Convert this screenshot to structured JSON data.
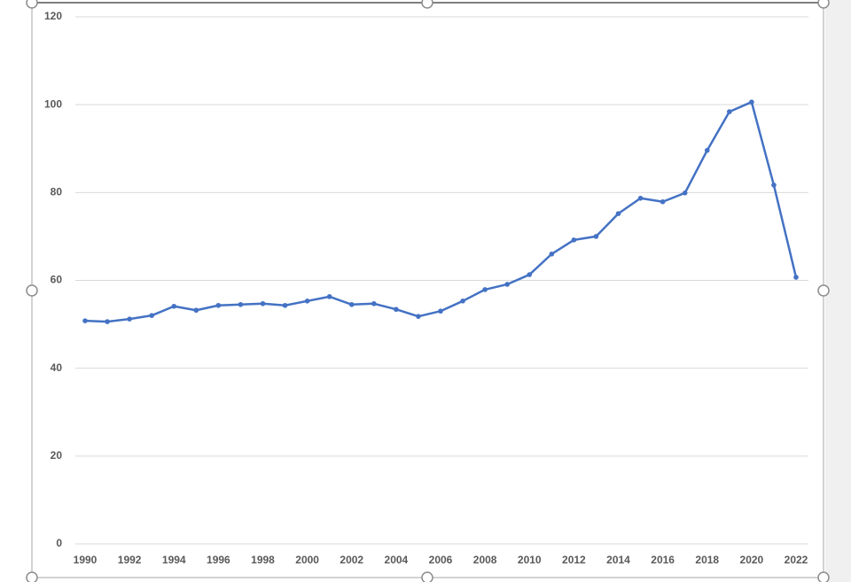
{
  "chart_data": {
    "type": "line",
    "x": [
      1990,
      1991,
      1992,
      1993,
      1994,
      1995,
      1996,
      1997,
      1998,
      1999,
      2000,
      2001,
      2002,
      2003,
      2004,
      2005,
      2006,
      2007,
      2008,
      2009,
      2010,
      2011,
      2012,
      2013,
      2014,
      2015,
      2016,
      2017,
      2018,
      2019,
      2020,
      2021,
      2022
    ],
    "values": [
      50.8,
      50.6,
      51.2,
      52.0,
      54.1,
      53.2,
      54.3,
      54.5,
      54.7,
      54.3,
      55.3,
      56.3,
      54.5,
      54.7,
      53.4,
      51.8,
      53.0,
      55.3,
      57.9,
      59.1,
      61.3,
      66.0,
      69.2,
      70.0,
      75.2,
      78.7,
      77.9,
      79.9,
      89.6,
      98.4,
      100.6,
      81.7,
      60.7
    ],
    "color": "#4472c4",
    "xlim": [
      1990,
      2022
    ],
    "xticks": [
      1990,
      1992,
      1994,
      1996,
      1998,
      2000,
      2002,
      2004,
      2006,
      2008,
      2010,
      2012,
      2014,
      2016,
      2018,
      2020,
      2022
    ],
    "ylim": [
      0,
      120
    ],
    "yticks": [
      0,
      20,
      40,
      60,
      80,
      100,
      120
    ],
    "grid": true
  }
}
